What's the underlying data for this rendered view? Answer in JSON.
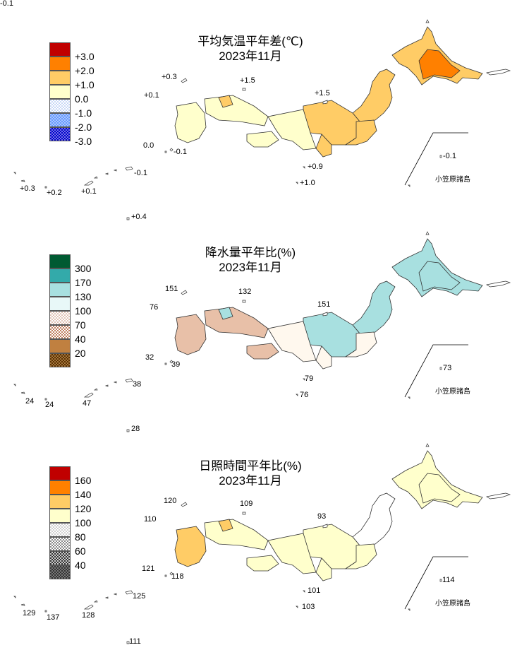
{
  "panels": {
    "temp": {
      "title1": "平均気温平年差(℃)",
      "title2": "2023年11月",
      "legend": [
        {
          "label": "+3.0",
          "color": "#c00000",
          "pattern": "solid"
        },
        {
          "label": "+2.0",
          "color": "#ff8000",
          "pattern": "solid"
        },
        {
          "label": "+1.0",
          "color": "#ffcc66",
          "pattern": "solid"
        },
        {
          "label": "0.0",
          "color": "#ffffcc",
          "pattern": "solid"
        },
        {
          "label": "-1.0",
          "color": "#ccddff",
          "pattern": "dots-light"
        },
        {
          "label": "-2.0",
          "color": "#6699ff",
          "pattern": "dots"
        },
        {
          "label": "-3.0",
          "color": "#0000cc",
          "pattern": "dots"
        }
      ],
      "values": [
        "+0.3",
        "+1.5",
        "+0.1",
        "+1.5",
        "0.0",
        "-0.1",
        "+0.9",
        "+1.0",
        "-0.1",
        "+0.3",
        "+0.2",
        "+0.1",
        "-0.1",
        "+0.4",
        "-0.1"
      ],
      "islands_label": "小笠原諸島",
      "region_colors": {
        "hokkaido": "#ffcc66",
        "hokkaido_core": "#ff8000",
        "tohoku": "#ffcc66",
        "kanto": "#ffcc66",
        "chubu": "#ffcc66",
        "chubu_south": "#ffcc66",
        "kinki": "#ffffcc",
        "chugoku": "#ffffcc",
        "shikoku": "#ffffcc",
        "kyushu": "#ffffcc",
        "chugoku_patch": "#ffcc66"
      }
    },
    "precip": {
      "title1": "降水量平年比(%)",
      "title2": "2023年11月",
      "legend": [
        {
          "label": "300",
          "color": "#005a32",
          "pattern": "solid"
        },
        {
          "label": "170",
          "color": "#33aaaa",
          "pattern": "solid"
        },
        {
          "label": "130",
          "color": "#a8e0e0",
          "pattern": "solid"
        },
        {
          "label": "100",
          "color": "#e8f8f8",
          "pattern": "solid"
        },
        {
          "label": "70",
          "color": "#fff8ee",
          "pattern": "dots-brown-light"
        },
        {
          "label": "40",
          "color": "#e8c0a8",
          "pattern": "check"
        },
        {
          "label": "20",
          "color": "#c08040",
          "pattern": "solid"
        },
        {
          "label": "",
          "color": "#5a3000",
          "pattern": "dots-dark"
        }
      ],
      "values": [
        "151",
        "132",
        "76",
        "151",
        "32",
        "39",
        "79",
        "76",
        "73",
        "24",
        "24",
        "47",
        "38",
        "28"
      ],
      "islands_label": "小笠原諸島",
      "region_colors": {
        "hokkaido": "#a8e0e0",
        "hokkaido_core": "#a8e0e0",
        "tohoku": "#a8e0e0",
        "kanto": "#fff8ee",
        "chubu": "#a8e0e0",
        "chubu_south": "#fff8ee",
        "kinki": "#fff8ee",
        "chugoku": "#e8c0a8",
        "shikoku": "#e8c0a8",
        "kyushu": "#e8c0a8",
        "chugoku_patch": "#a8e0e0"
      }
    },
    "sun": {
      "title1": "日照時間平年比(%)",
      "title2": "2023年11月",
      "legend": [
        {
          "label": "160",
          "color": "#c00000",
          "pattern": "solid"
        },
        {
          "label": "140",
          "color": "#ff8000",
          "pattern": "solid"
        },
        {
          "label": "120",
          "color": "#ffcc66",
          "pattern": "solid"
        },
        {
          "label": "100",
          "color": "#ffffcc",
          "pattern": "solid"
        },
        {
          "label": "80",
          "color": "#ffffff",
          "pattern": "dots-gray"
        },
        {
          "label": "60",
          "color": "#dddddd",
          "pattern": "check-gray"
        },
        {
          "label": "40",
          "color": "#888888",
          "pattern": "check-dark"
        },
        {
          "label": "",
          "color": "#333333",
          "pattern": "dots-black"
        }
      ],
      "values": [
        "120",
        "109",
        "110",
        "93",
        "121",
        "118",
        "101",
        "103",
        "114",
        "129",
        "137",
        "128",
        "125",
        "111"
      ],
      "islands_label": "小笠原諸島",
      "region_colors": {
        "hokkaido": "#ffffcc",
        "hokkaido_core": "#ffffcc",
        "tohoku": "#ffffff",
        "kanto": "#ffffcc",
        "chubu": "#ffffcc",
        "chubu_south": "#ffffcc",
        "kinki": "#ffffcc",
        "chugoku": "#ffffcc",
        "shikoku": "#ffffcc",
        "kyushu": "#ffcc66",
        "chugoku_patch": "#ffcc66"
      }
    }
  }
}
